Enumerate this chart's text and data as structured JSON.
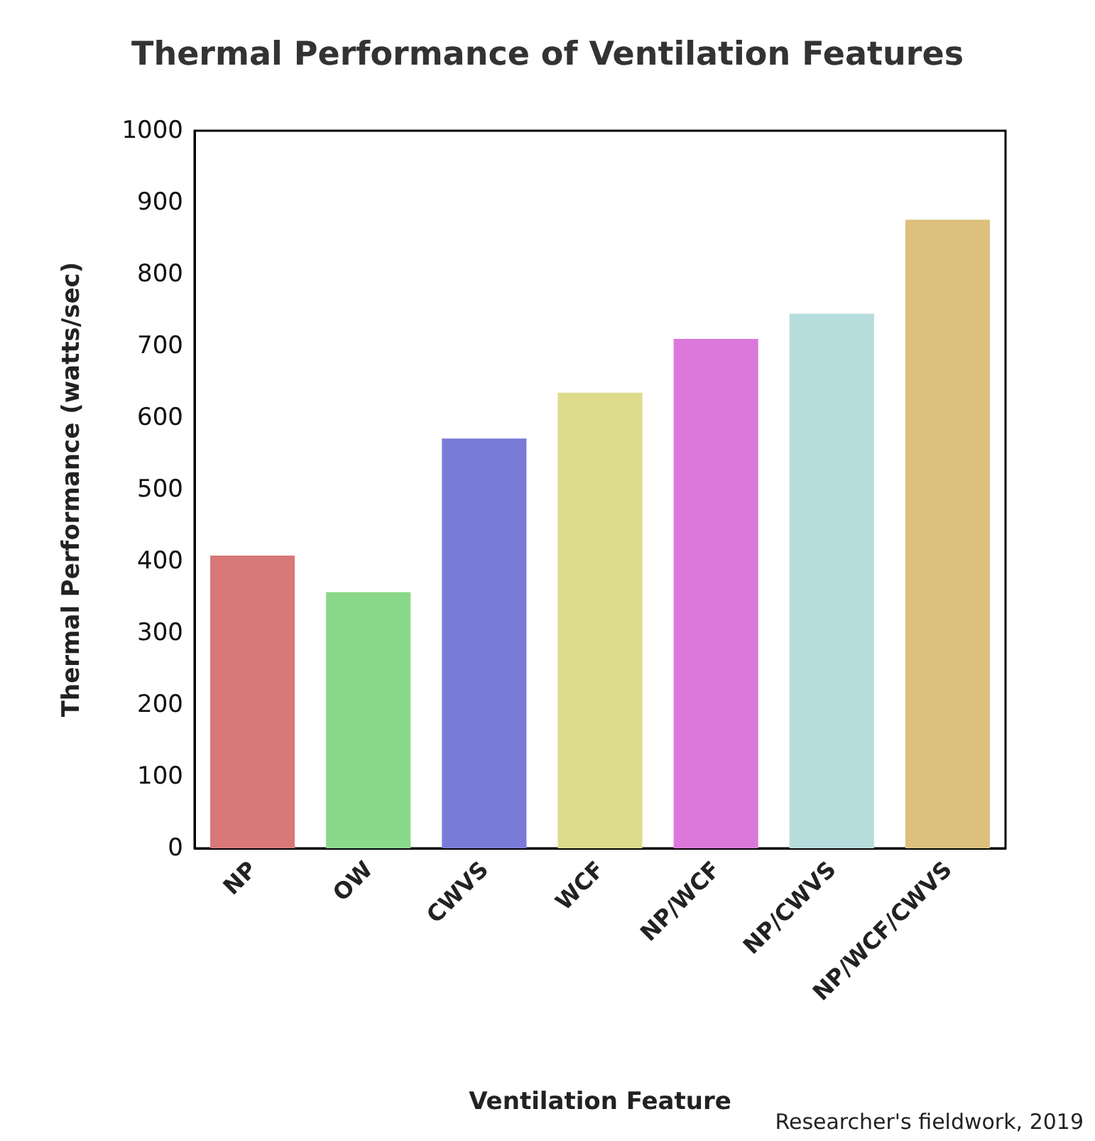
{
  "chart_data": {
    "type": "bar",
    "title": "Thermal Performance of Ventilation Features",
    "xlabel": "Ventilation Feature",
    "ylabel": "Thermal Performance (watts/sec)",
    "categories": [
      "NP",
      "OW",
      "CWVS",
      "WCF",
      "NP/WCF",
      "NP/CWVS",
      "NP/WCF/CWVS"
    ],
    "values": [
      408,
      357,
      571,
      635,
      710,
      745,
      876
    ],
    "colors": [
      "#d87878",
      "#8ad88a",
      "#7a7ad8",
      "#dcdc8c",
      "#dc78dc",
      "#b6dcdc",
      "#dcc07c"
    ],
    "ylim": [
      0,
      1000
    ],
    "yticks": [
      0,
      100,
      200,
      300,
      400,
      500,
      600,
      700,
      800,
      900,
      1000
    ],
    "grid": false,
    "annotations": [
      "Researcher's fieldwork, 2019"
    ]
  }
}
